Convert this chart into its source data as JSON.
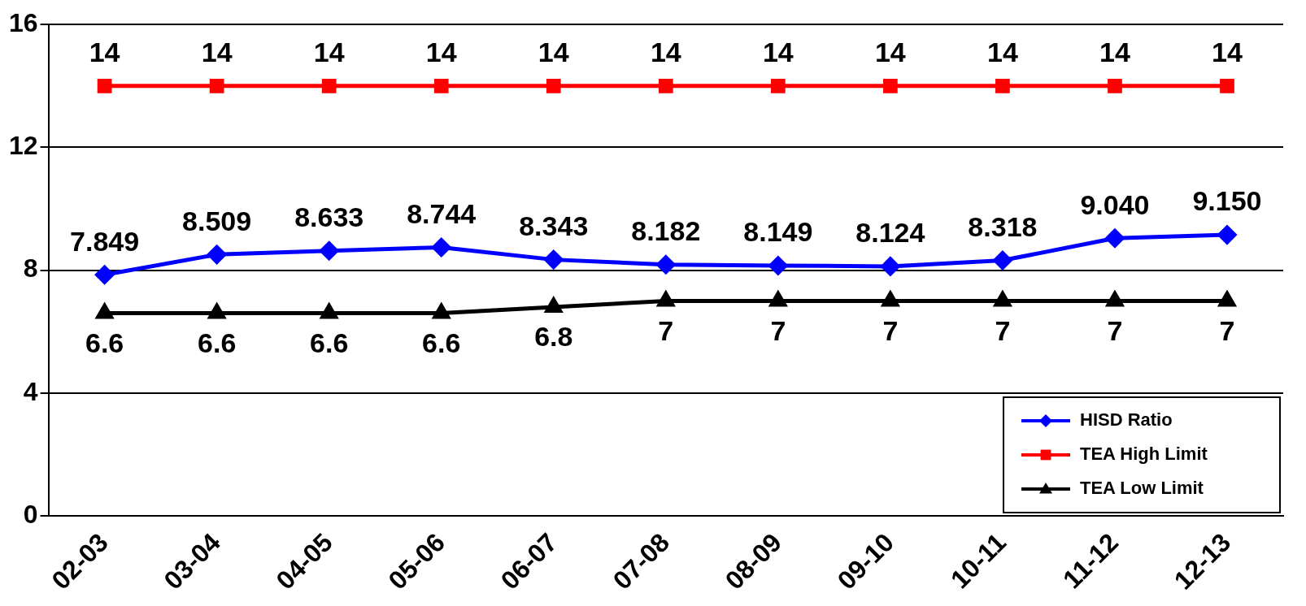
{
  "chart_data": {
    "type": "line",
    "categories": [
      "02-03",
      "03-04",
      "04-05",
      "05-06",
      "06-07",
      "07-08",
      "08-09",
      "09-10",
      "10-11",
      "11-12",
      "12-13"
    ],
    "series": [
      {
        "name": "HISD Ratio",
        "color": "#0000ff",
        "marker": "diamond",
        "values": [
          7.849,
          8.509,
          8.633,
          8.744,
          8.343,
          8.182,
          8.149,
          8.124,
          8.318,
          9.04,
          9.15
        ],
        "value_labels": [
          "7.849",
          "8.509",
          "8.633",
          "8.744",
          "8.343",
          "8.182",
          "8.149",
          "8.124",
          "8.318",
          "9.040",
          "9.150"
        ]
      },
      {
        "name": "TEA High Limit",
        "color": "#ff0000",
        "marker": "square",
        "values": [
          14,
          14,
          14,
          14,
          14,
          14,
          14,
          14,
          14,
          14,
          14
        ],
        "value_labels": [
          "14",
          "14",
          "14",
          "14",
          "14",
          "14",
          "14",
          "14",
          "14",
          "14",
          "14"
        ]
      },
      {
        "name": "TEA Low Limit",
        "color": "#000000",
        "marker": "triangle",
        "values": [
          6.6,
          6.6,
          6.6,
          6.6,
          6.8,
          7,
          7,
          7,
          7,
          7,
          7
        ],
        "value_labels": [
          "6.6",
          "6.6",
          "6.6",
          "6.6",
          "6.8",
          "7",
          "7",
          "7",
          "7",
          "7",
          "7"
        ]
      }
    ],
    "ylim": [
      0,
      16
    ],
    "yticks": [
      0,
      4,
      8,
      12,
      16
    ],
    "grid": "y",
    "legend": "bottom right",
    "line_style": "solid"
  }
}
